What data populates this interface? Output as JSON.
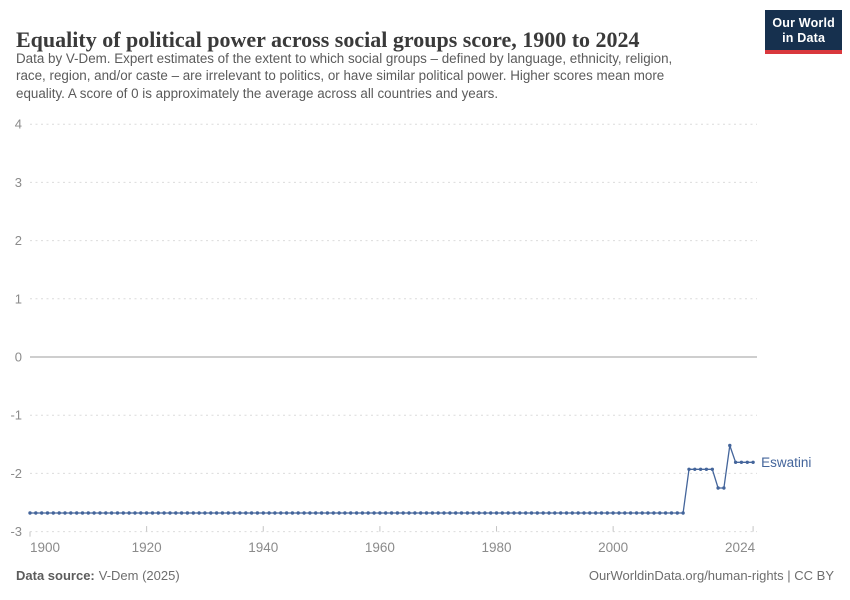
{
  "header": {
    "title": "Equality of political power across social groups score, 1900 to 2024",
    "subtitle_lines": [
      "Data by V-Dem. Expert estimates of the extent to which social groups – defined by language, ethnicity, religion,",
      "race, region, and/or caste – are irrelevant to politics, or have similar political power. Higher scores mean more",
      "equality. A score of 0 is approximately the average across all countries and years."
    ],
    "logo": {
      "line1": "Our World",
      "line2": "in Data"
    }
  },
  "chart_data": {
    "type": "line",
    "title": "Equality of political power across social groups score, 1900 to 2024",
    "entity_label": "Eswatini",
    "x_ticks": [
      1900,
      1920,
      1940,
      1960,
      1980,
      2000,
      2024
    ],
    "y_ticks": [
      4,
      3,
      2,
      1,
      0,
      -1,
      -2,
      -3
    ],
    "xlim": [
      1900,
      2024
    ],
    "ylim": [
      -3,
      4
    ],
    "grid": "horizontal dashed lines, solid line at 0",
    "legend_position": "label at end of line",
    "series": [
      {
        "name": "Eswatini",
        "color": "#44659B",
        "marker": "circle",
        "segments": [
          {
            "start_year": 1900,
            "end_year": 2012,
            "value": -2.68
          },
          {
            "start_year": 2013,
            "end_year": 2017,
            "value": -1.93
          },
          {
            "start_year": 2018,
            "end_year": 2019,
            "value": -2.25
          },
          {
            "start_year": 2020,
            "end_year": 2020,
            "value": -1.52
          },
          {
            "start_year": 2021,
            "end_year": 2024,
            "value": -1.81
          }
        ]
      }
    ]
  },
  "colors": {
    "line_blue": "#44659B",
    "logo_navy": "#16304e",
    "logo_red": "#d9383d",
    "grid_dash": "#dcdcdc",
    "zero_line": "#9e9e9e",
    "axis_tick": "#c4c4c4",
    "axis_label": "#8b8b8b",
    "title_text": "#3a3a3a",
    "subtitle_text": "#5b5b5b",
    "footer_text": "#6e6e6e"
  },
  "footer": {
    "source_label": "Data source:",
    "source_value": "V-Dem (2025)",
    "credit": "OurWorldinData.org/human-rights | CC BY"
  }
}
